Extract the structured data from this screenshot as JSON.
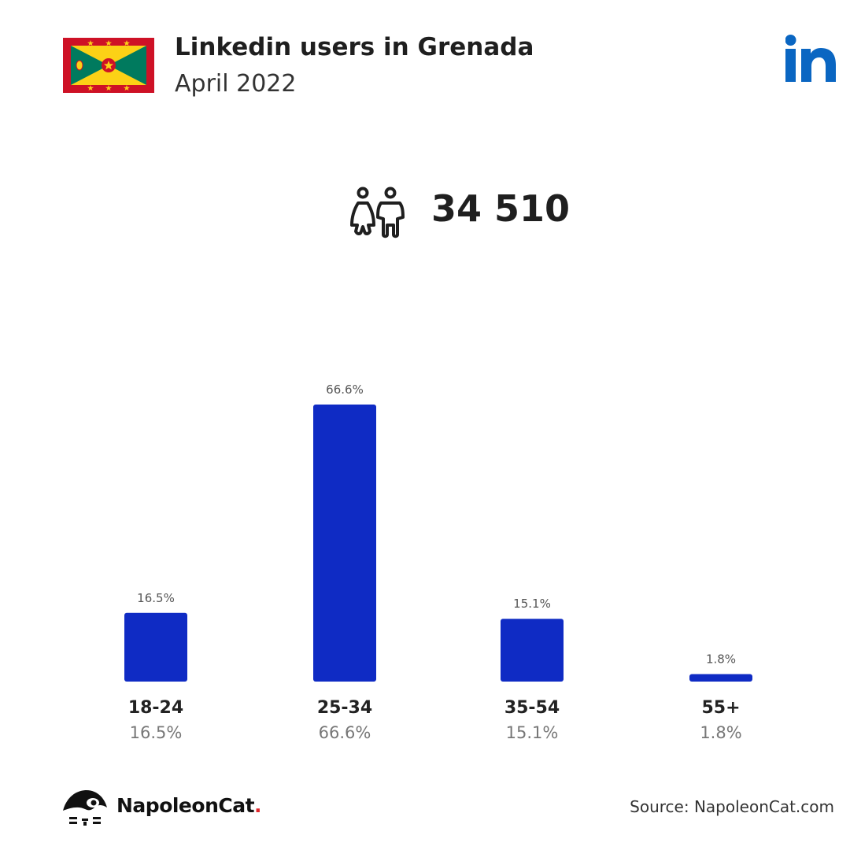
{
  "header": {
    "title": "Linkedin users in Grenada",
    "subtitle": "April 2022"
  },
  "summary": {
    "total_users": "34 510",
    "icon": "users-icon"
  },
  "colors": {
    "bar": "#0f2bc4",
    "linkedin": "#0a66c2",
    "flag_red": "#ce1126",
    "flag_yellow": "#fcd116",
    "flag_green": "#007a5e"
  },
  "chart_data": {
    "type": "bar",
    "categories": [
      "18-24",
      "25-34",
      "35-54",
      "55+"
    ],
    "values": [
      16.5,
      66.6,
      15.1,
      1.8
    ],
    "data_labels": [
      "16.5%",
      "66.6%",
      "15.1%",
      "1.8%"
    ],
    "title": "Linkedin users in Grenada",
    "xlabel": "",
    "ylabel": "",
    "ylim": [
      0,
      66.6
    ],
    "grid": false
  },
  "footer": {
    "brand_name": "NapoleonCat",
    "brand_dot": ".",
    "source": "Source: NapoleonCat.com"
  }
}
